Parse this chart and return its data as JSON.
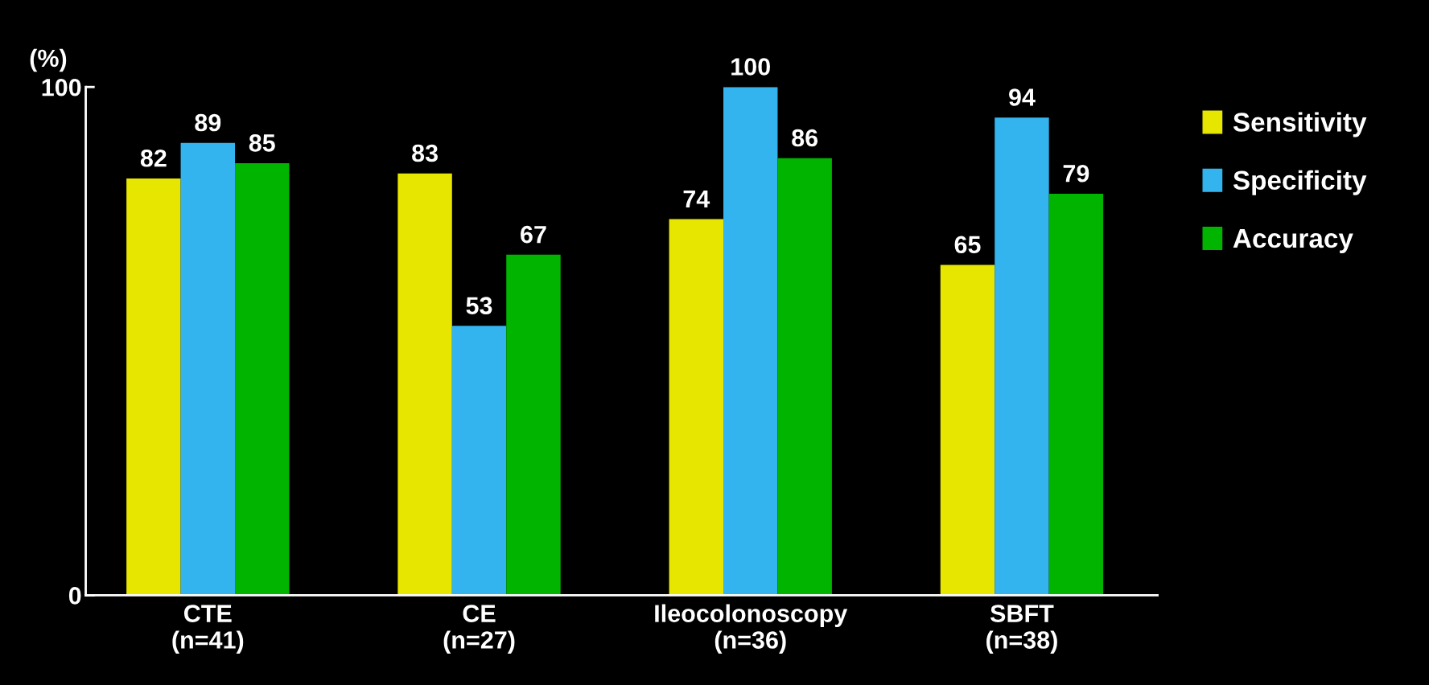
{
  "chart_data": {
    "type": "bar",
    "ylabel": "(%)",
    "categories": [
      "CTE\n(n=41)",
      "CE\n(n=27)",
      "Ileocolonoscopy\n(n=36)",
      "SBFT\n(n=38)"
    ],
    "series": [
      {
        "name": "Sensitivity",
        "color": "#e6e600",
        "values": [
          82,
          83,
          74,
          65
        ]
      },
      {
        "name": "Specificity",
        "color": "#33b4ee",
        "values": [
          89,
          53,
          100,
          94
        ]
      },
      {
        "name": "Accuracy",
        "color": "#00b400",
        "values": [
          85,
          67,
          86,
          79
        ]
      }
    ],
    "ylim": [
      0,
      100
    ],
    "yticks": [
      0,
      100
    ],
    "data_labels": true,
    "legend": "right",
    "grid": false
  }
}
